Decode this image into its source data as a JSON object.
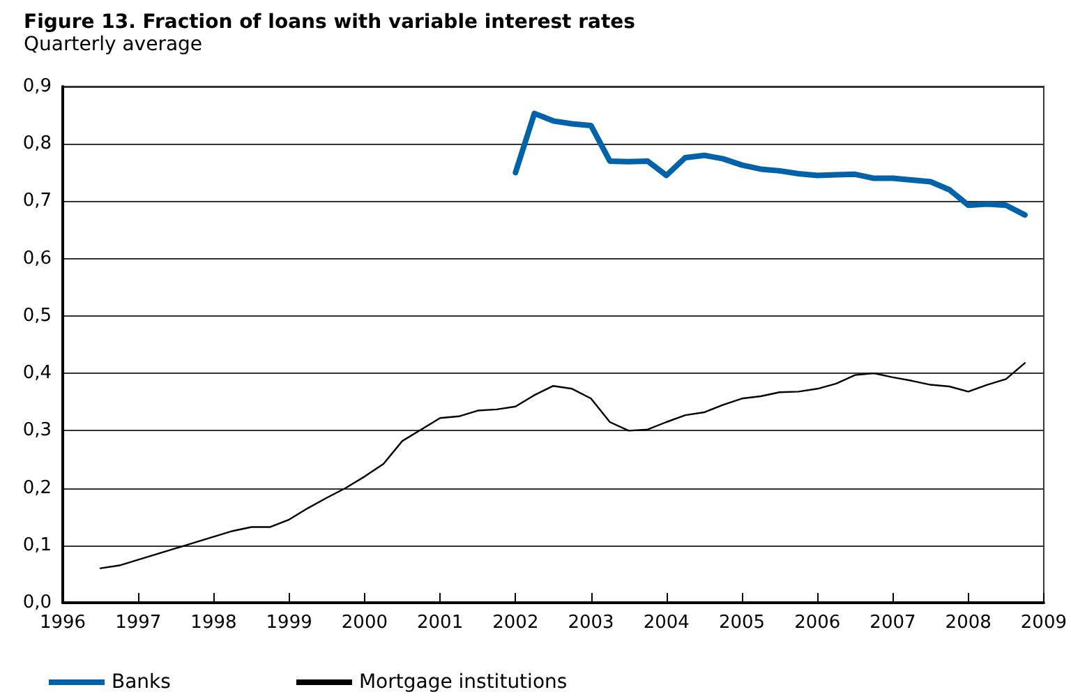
{
  "chart_data": {
    "type": "line",
    "title": "Figure 13. Fraction of loans with variable interest rates",
    "subtitle": "Quarterly average",
    "series": [
      {
        "name": "Banks",
        "color": "#0062a8",
        "x": [
          2002,
          2002.25,
          2002.5,
          2002.75,
          2003,
          2003.25,
          2003.5,
          2003.75,
          2004,
          2004.25,
          2004.5,
          2004.75,
          2005,
          2005.25,
          2005.5,
          2005.75,
          2006,
          2006.25,
          2006.5,
          2006.75,
          2007,
          2007.25,
          2007.5,
          2007.75,
          2008,
          2008.25,
          2008.5,
          2008.75
        ],
        "values": [
          0.75,
          0.853,
          0.84,
          0.835,
          0.832,
          0.77,
          0.769,
          0.77,
          0.745,
          0.776,
          0.78,
          0.774,
          0.763,
          0.756,
          0.753,
          0.748,
          0.745,
          0.746,
          0.747,
          0.74,
          0.74,
          0.737,
          0.734,
          0.72,
          0.693,
          0.695,
          0.693,
          0.676
        ]
      },
      {
        "name": "Mortgage institutions",
        "color": "#000000",
        "x": [
          1996.5,
          1996.75,
          1997,
          1997.25,
          1997.5,
          1997.75,
          1998,
          1998.25,
          1998.5,
          1998.75,
          1999,
          1999.25,
          1999.5,
          1999.75,
          2000,
          2000.25,
          2000.5,
          2000.75,
          2001,
          2001.25,
          2001.5,
          2001.75,
          2002,
          2002.25,
          2002.5,
          2002.75,
          2003,
          2003.25,
          2003.5,
          2003.75,
          2004,
          2004.25,
          2004.5,
          2004.75,
          2005,
          2005.25,
          2005.5,
          2005.75,
          2006,
          2006.25,
          2006.5,
          2006.75,
          2007,
          2007.25,
          2007.5,
          2007.75,
          2008,
          2008.25,
          2008.5,
          2008.75
        ],
        "values": [
          0.06,
          0.065,
          0.075,
          0.085,
          0.095,
          0.105,
          0.115,
          0.125,
          0.132,
          0.132,
          0.145,
          0.165,
          0.183,
          0.2,
          0.22,
          0.242,
          0.282,
          0.302,
          0.322,
          0.325,
          0.335,
          0.337,
          0.342,
          0.362,
          0.378,
          0.373,
          0.356,
          0.315,
          0.3,
          0.302,
          0.315,
          0.327,
          0.332,
          0.345,
          0.356,
          0.36,
          0.367,
          0.368,
          0.373,
          0.382,
          0.397,
          0.4,
          0.393,
          0.387,
          0.38,
          0.377,
          0.368,
          0.38,
          0.39,
          0.418
        ]
      }
    ],
    "xlim": [
      1996,
      2009
    ],
    "xticks": [
      1996,
      1997,
      1998,
      1999,
      2000,
      2001,
      2002,
      2003,
      2004,
      2005,
      2006,
      2007,
      2008,
      2009
    ],
    "ylim": [
      0,
      0.9
    ],
    "yticks": [
      {
        "value": 0,
        "label": "0,0"
      },
      {
        "value": 0.1,
        "label": "0,1"
      },
      {
        "value": 0.2,
        "label": "0,2"
      },
      {
        "value": 0.3,
        "label": "0,3"
      },
      {
        "value": 0.4,
        "label": "0,4"
      },
      {
        "value": 0.5,
        "label": "0,5"
      },
      {
        "value": 0.6,
        "label": "0,6"
      },
      {
        "value": 0.7,
        "label": "0,7"
      },
      {
        "value": 0.8,
        "label": "0,8"
      },
      {
        "value": 0.9,
        "label": "0,9"
      }
    ],
    "grid": "y",
    "legend": "bottom left",
    "marker": "none",
    "line_style": "solid"
  }
}
